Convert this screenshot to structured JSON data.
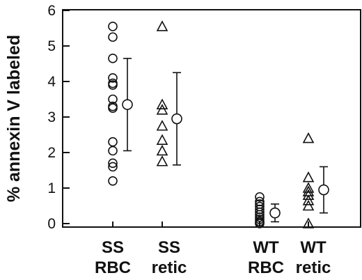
{
  "chart_data": {
    "type": "scatter",
    "title": "",
    "ylabel": "% annexin V labeled",
    "xlabel": "",
    "ylim": [
      0,
      6
    ],
    "yticks": [
      0,
      1,
      2,
      3,
      4,
      5,
      6
    ],
    "grid": false,
    "legend": "none",
    "groups": [
      {
        "label_line1": "SS",
        "label_line2": "RBC",
        "marker": "circle",
        "values": [
          5.55,
          5.25,
          4.65,
          4.1,
          3.95,
          3.9,
          3.5,
          3.3,
          3.25,
          2.3,
          2.05,
          1.7,
          1.6,
          1.2
        ],
        "mean": 3.35,
        "error_low": 2.05,
        "error_high": 4.65
      },
      {
        "label_line1": "SS",
        "label_line2": "retic",
        "marker": "triangle",
        "values": [
          5.55,
          3.35,
          3.2,
          2.75,
          2.35,
          2.05,
          1.75
        ],
        "mean": 2.95,
        "error_low": 1.65,
        "error_high": 4.25
      },
      {
        "label_line1": "WT",
        "label_line2": "RBC",
        "marker": "circle",
        "values": [
          0.75,
          0.62,
          0.55,
          0.48,
          0.4,
          0.32,
          0.25,
          0.18,
          0.12,
          0.06,
          0.02,
          0.0
        ],
        "mean": 0.3,
        "error_low": 0.05,
        "error_high": 0.55
      },
      {
        "label_line1": "WT",
        "label_line2": "retic",
        "marker": "triangle",
        "values": [
          2.4,
          1.3,
          1.0,
          0.9,
          0.8,
          0.65,
          0.5,
          0.0
        ],
        "mean": 0.95,
        "error_low": 0.3,
        "error_high": 1.6
      }
    ]
  },
  "colors": {
    "ink": "#111111",
    "background": "#ffffff"
  }
}
